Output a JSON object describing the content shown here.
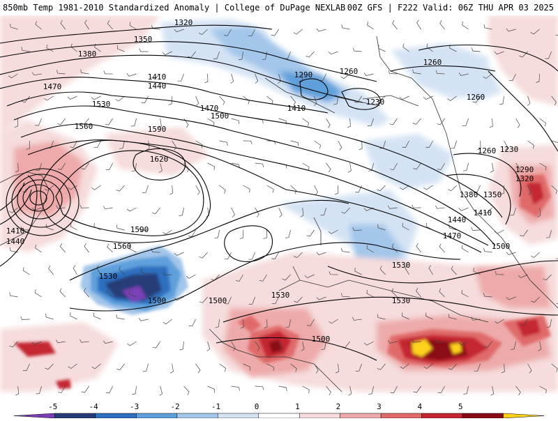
{
  "header": {
    "left_title": "850mb Temp 1981-2010 Standardized Anomaly | College of DuPage NEXLAB",
    "right_title": "00Z GFS | F222 Valid: 06Z THU APR 03 2025"
  },
  "colorbar": {
    "ticks": [
      "-5",
      "-4",
      "-3",
      "-2",
      "-1",
      "0",
      "1",
      "2",
      "3",
      "4",
      "5"
    ],
    "colors": [
      "#7a3fb5",
      "#283c78",
      "#2f6fc0",
      "#5fa0dc",
      "#a3c6ea",
      "#d4e3f4",
      "#ffffff",
      "#f6dcdc",
      "#eeaaaa",
      "#e06a6a",
      "#c42530",
      "#8a0a16",
      "#ffd21a"
    ]
  },
  "contours": {
    "labels": [
      {
        "text": "1320"
      },
      {
        "text": "1350"
      },
      {
        "text": "1380"
      },
      {
        "text": "1410"
      },
      {
        "text": "1440"
      },
      {
        "text": "1470"
      },
      {
        "text": "1530"
      },
      {
        "text": "1560"
      },
      {
        "text": "1590"
      },
      {
        "text": "1620"
      },
      {
        "text": "1470"
      },
      {
        "text": "1500"
      },
      {
        "text": "1410"
      },
      {
        "text": "1290"
      },
      {
        "text": "1260"
      },
      {
        "text": "1230"
      },
      {
        "text": "1260"
      },
      {
        "text": "1260"
      },
      {
        "text": "1260"
      },
      {
        "text": "1230"
      },
      {
        "text": "1290"
      },
      {
        "text": "1320"
      },
      {
        "text": "1380"
      },
      {
        "text": "1350"
      },
      {
        "text": "1410"
      },
      {
        "text": "1440"
      },
      {
        "text": "1470"
      },
      {
        "text": "1500"
      },
      {
        "text": "1530"
      },
      {
        "text": "1530"
      },
      {
        "text": "1530"
      },
      {
        "text": "1500"
      },
      {
        "text": "1500"
      },
      {
        "text": "1500"
      },
      {
        "text": "1530"
      },
      {
        "text": "1590"
      },
      {
        "text": "1560"
      },
      {
        "text": "1410"
      },
      {
        "text": "1440"
      }
    ]
  }
}
